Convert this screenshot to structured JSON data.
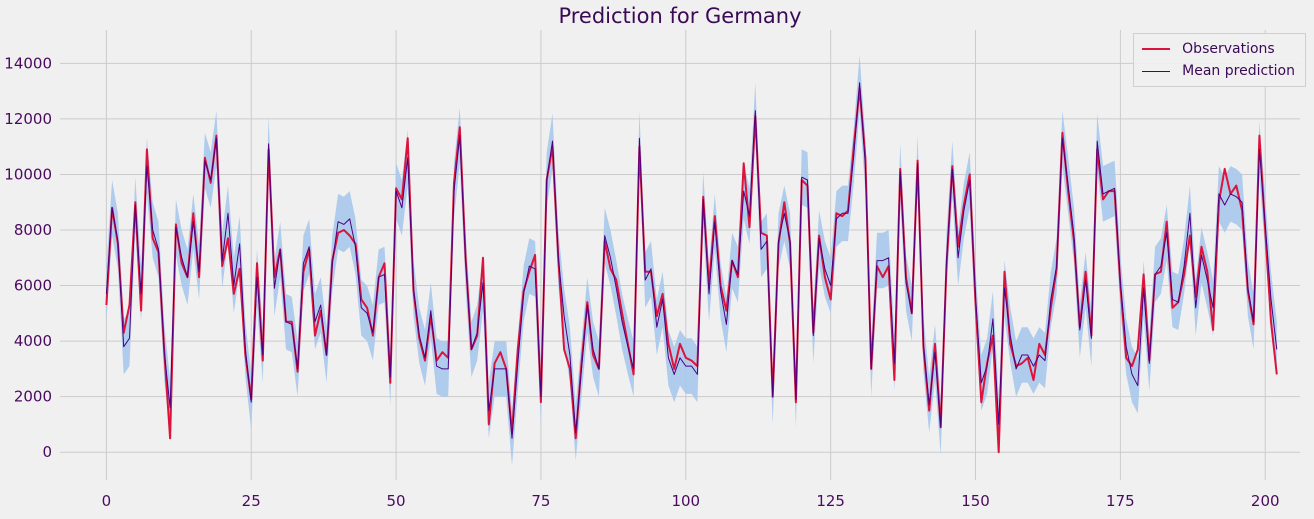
{
  "chart_data": {
    "type": "line",
    "title": "Prediction for Germany",
    "xlabel": "",
    "ylabel": "",
    "xlim": [
      -8,
      206
    ],
    "ylim": [
      -1000,
      15200
    ],
    "xticks": [
      0,
      25,
      50,
      75,
      100,
      125,
      150,
      175,
      200
    ],
    "yticks": [
      0,
      2000,
      4000,
      6000,
      8000,
      10000,
      12000,
      14000
    ],
    "grid": true,
    "legend_position": "top-right",
    "series": [
      {
        "name": "Observations",
        "color": "#dc143c",
        "values": [
          5300,
          8800,
          7500,
          4300,
          5300,
          9000,
          5100,
          10900,
          7700,
          7200,
          3600,
          500,
          8200,
          6800,
          6300,
          8600,
          6300,
          10600,
          9700,
          11400,
          6700,
          7700,
          5700,
          6600,
          3500,
          1900,
          6800,
          3300,
          10900,
          6300,
          7300,
          4700,
          4700,
          2900,
          6500,
          7300,
          4200,
          5100,
          3500,
          6900,
          7900,
          8000,
          7800,
          7500,
          5500,
          5200,
          4200,
          6300,
          6800,
          2500,
          9500,
          9100,
          11300,
          5800,
          4100,
          3300,
          4900,
          3300,
          3600,
          3400,
          9700,
          11700,
          7000,
          3700,
          4200,
          7000,
          1000,
          3200,
          3600,
          3000,
          700,
          3700,
          5800,
          6500,
          7100,
          1800,
          9800,
          11000,
          7000,
          3700,
          3000,
          500,
          3200,
          5400,
          3500,
          3000,
          7600,
          6600,
          6200,
          5000,
          3900,
          2800,
          11000,
          6500,
          6500,
          4900,
          5700,
          3900,
          3000,
          3900,
          3400,
          3300,
          3100,
          9200,
          6000,
          8500,
          6000,
          5100,
          6900,
          6300,
          10400,
          8100,
          12100,
          7900,
          7800,
          2000,
          7500,
          9000,
          7500,
          1800,
          9800,
          9600,
          4300,
          7800,
          6300,
          5500,
          8600,
          8500,
          8700,
          11000,
          13100,
          10600,
          3000,
          6700,
          6300,
          6700,
          2600,
          10200,
          6300,
          5000,
          10500,
          3800,
          1500,
          3900,
          900,
          6700,
          10300,
          7400,
          8900,
          10000,
          5400,
          1800,
          3200,
          4200,
          0,
          6500,
          3900,
          3100,
          3200,
          3400,
          2600,
          3900,
          3500,
          5200,
          6600,
          11500,
          9400,
          7600,
          4500,
          6500,
          4200,
          10900,
          9100,
          9400,
          9400,
          6000,
          3400,
          3100,
          3700,
          6400,
          3300,
          6400,
          6500,
          8300,
          5200,
          5400,
          6400,
          7800,
          5600,
          7400,
          6500,
          4400,
          9000,
          10200,
          9300,
          9600,
          8700,
          5800,
          4600,
          11400,
          8000,
          4700,
          2800
        ]
      },
      {
        "name": "Mean prediction",
        "color": "#4b0082",
        "values": [
          5700,
          8800,
          7600,
          3800,
          4100,
          8900,
          5700,
          10300,
          8000,
          7300,
          3600,
          1600,
          8100,
          7000,
          6300,
          8300,
          6500,
          10500,
          9800,
          11300,
          6900,
          8600,
          6000,
          7500,
          3700,
          1800,
          6300,
          3500,
          11100,
          5900,
          7300,
          4700,
          4600,
          3000,
          6800,
          7400,
          4700,
          5300,
          3500,
          6800,
          8300,
          8200,
          8400,
          7400,
          5200,
          5000,
          4300,
          6300,
          6400,
          2700,
          9400,
          8800,
          10600,
          5900,
          4200,
          3400,
          5100,
          3100,
          3000,
          3000,
          9400,
          11400,
          6900,
          3700,
          4300,
          6100,
          1500,
          3000,
          3000,
          3000,
          500,
          3200,
          5700,
          6700,
          6600,
          2000,
          9800,
          11200,
          7000,
          4900,
          3500,
          700,
          3000,
          5300,
          3700,
          3000,
          7800,
          7000,
          5900,
          4700,
          3800,
          3000,
          11300,
          6200,
          6600,
          4500,
          5500,
          3400,
          2800,
          3400,
          3100,
          3100,
          2800,
          9100,
          5700,
          8300,
          5800,
          4600,
          6900,
          6400,
          9400,
          8500,
          12300,
          7300,
          7600,
          2000,
          7600,
          8600,
          7600,
          1900,
          9900,
          9800,
          4200,
          7700,
          6600,
          6000,
          8400,
          8600,
          8600,
          10700,
          13300,
          10300,
          3000,
          6900,
          6900,
          7000,
          3200,
          10100,
          6100,
          5000,
          10400,
          3900,
          1700,
          3600,
          900,
          6900,
          10200,
          7000,
          8700,
          9800,
          5600,
          2500,
          3100,
          4800,
          1000,
          5900,
          4200,
          3000,
          3500,
          3500,
          3100,
          3500,
          3300,
          5500,
          6700,
          11300,
          9600,
          7800,
          4400,
          6200,
          4100,
          11200,
          9300,
          9400,
          9500,
          6100,
          3800,
          2800,
          2400,
          5900,
          3200,
          6400,
          6700,
          7900,
          5500,
          5400,
          6700,
          8600,
          5200,
          7100,
          6200,
          5200,
          9300,
          8900,
          9300,
          9200,
          9000,
          5900,
          4700,
          10900,
          8200,
          5500,
          3700
        ]
      },
      {
        "name": "",
        "color": "#a9c8ec",
        "uncertainty_half_width": 1000
      }
    ]
  }
}
